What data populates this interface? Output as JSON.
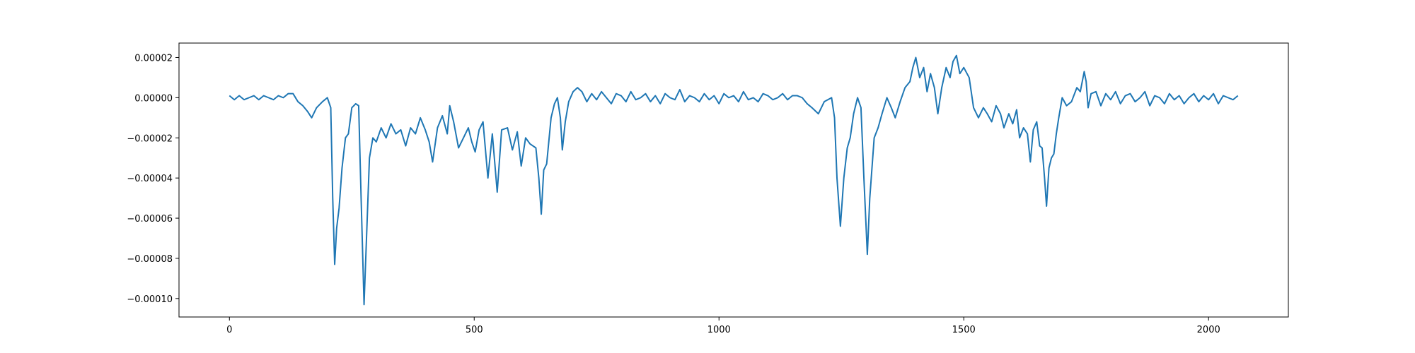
{
  "chart_data": {
    "type": "line",
    "x": [
      0,
      10,
      20,
      30,
      40,
      50,
      60,
      70,
      80,
      90,
      100,
      110,
      120,
      130,
      140,
      150,
      160,
      168,
      178,
      190,
      200,
      207,
      211,
      215,
      219,
      224,
      230,
      237,
      243,
      250,
      258,
      264,
      269,
      275,
      280,
      286,
      293,
      300,
      310,
      320,
      330,
      340,
      350,
      360,
      370,
      380,
      390,
      400,
      408,
      415,
      425,
      435,
      445,
      450,
      458,
      468,
      478,
      488,
      495,
      502,
      510,
      518,
      528,
      537,
      547,
      556,
      568,
      578,
      588,
      596,
      605,
      614,
      626,
      632,
      637,
      642,
      648,
      657,
      664,
      670,
      676,
      680,
      686,
      693,
      702,
      711,
      720,
      730,
      740,
      750,
      760,
      770,
      780,
      790,
      800,
      810,
      820,
      830,
      840,
      850,
      860,
      870,
      880,
      890,
      900,
      910,
      920,
      930,
      940,
      950,
      960,
      970,
      980,
      990,
      1000,
      1010,
      1020,
      1030,
      1040,
      1050,
      1060,
      1070,
      1080,
      1090,
      1100,
      1110,
      1120,
      1130,
      1140,
      1150,
      1160,
      1170,
      1180,
      1190,
      1203,
      1215,
      1230,
      1236,
      1241,
      1248,
      1255,
      1262,
      1268,
      1275,
      1283,
      1290,
      1296,
      1303,
      1308,
      1317,
      1325,
      1333,
      1343,
      1352,
      1360,
      1370,
      1380,
      1390,
      1396,
      1402,
      1410,
      1418,
      1425,
      1432,
      1440,
      1447,
      1455,
      1464,
      1472,
      1478,
      1485,
      1492,
      1500,
      1511,
      1520,
      1530,
      1540,
      1548,
      1557,
      1566,
      1575,
      1582,
      1592,
      1600,
      1608,
      1614,
      1622,
      1630,
      1636,
      1642,
      1649,
      1655,
      1660,
      1665,
      1669,
      1674,
      1679,
      1684,
      1689,
      1694,
      1701,
      1710,
      1720,
      1731,
      1738,
      1746,
      1750,
      1754,
      1760,
      1770,
      1780,
      1790,
      1800,
      1810,
      1820,
      1830,
      1840,
      1850,
      1860,
      1870,
      1880,
      1890,
      1900,
      1910,
      1920,
      1930,
      1940,
      1950,
      1960,
      1970,
      1980,
      1990,
      2000,
      2010,
      2020,
      2030,
      2040,
      2050,
      2060
    ],
    "values": [
      1e-06,
      -1e-06,
      1e-06,
      -1e-06,
      0,
      1e-06,
      -1e-06,
      1e-06,
      0,
      -1e-06,
      1e-06,
      0,
      2e-06,
      2e-06,
      -2e-06,
      -4e-06,
      -7e-06,
      -1e-05,
      -5e-06,
      -2e-06,
      0,
      -5e-06,
      -5e-05,
      -8.3e-05,
      -6.5e-05,
      -5.5e-05,
      -3.5e-05,
      -2e-05,
      -1.8e-05,
      -5e-06,
      -3e-06,
      -4e-06,
      -5e-05,
      -0.000103,
      -7e-05,
      -3e-05,
      -2e-05,
      -2.2e-05,
      -1.5e-05,
      -2e-05,
      -1.3e-05,
      -1.8e-05,
      -1.6e-05,
      -2.4e-05,
      -1.5e-05,
      -1.8e-05,
      -1e-05,
      -1.6e-05,
      -2.2e-05,
      -3.2e-05,
      -1.5e-05,
      -9e-06,
      -1.8e-05,
      -4e-06,
      -1.2e-05,
      -2.5e-05,
      -2e-05,
      -1.5e-05,
      -2.2e-05,
      -2.7e-05,
      -1.6e-05,
      -1.2e-05,
      -4e-05,
      -1.8e-05,
      -4.7e-05,
      -1.6e-05,
      -1.5e-05,
      -2.6e-05,
      -1.7e-05,
      -3.4e-05,
      -2e-05,
      -2.3e-05,
      -2.5e-05,
      -4e-05,
      -5.8e-05,
      -3.6e-05,
      -3.3e-05,
      -1e-05,
      -3e-06,
      0,
      -1e-05,
      -2.6e-05,
      -1.2e-05,
      -2e-06,
      3e-06,
      5e-06,
      3e-06,
      -2e-06,
      2e-06,
      -1e-06,
      3e-06,
      0,
      -3e-06,
      2e-06,
      1e-06,
      -2e-06,
      3e-06,
      -1e-06,
      0,
      2e-06,
      -2e-06,
      1e-06,
      -3e-06,
      2e-06,
      0,
      -1e-06,
      4e-06,
      -2e-06,
      1e-06,
      0,
      -2e-06,
      2e-06,
      -1e-06,
      1e-06,
      -3e-06,
      2e-06,
      0,
      1e-06,
      -2e-06,
      3e-06,
      -1e-06,
      0,
      -2e-06,
      2e-06,
      1e-06,
      -1e-06,
      0,
      2e-06,
      -1e-06,
      1e-06,
      1e-06,
      0,
      -3e-06,
      -5e-06,
      -8e-06,
      -2e-06,
      0,
      -1e-05,
      -4e-05,
      -6.4e-05,
      -4e-05,
      -2.5e-05,
      -2e-05,
      -8e-06,
      0,
      -5e-06,
      -4e-05,
      -7.8e-05,
      -5e-05,
      -2e-05,
      -1.5e-05,
      -8e-06,
      0,
      -5e-06,
      -1e-05,
      -2e-06,
      5e-06,
      8e-06,
      1.5e-05,
      2e-05,
      1e-05,
      1.5e-05,
      3e-06,
      1.2e-05,
      5e-06,
      -8e-06,
      5e-06,
      1.5e-05,
      1e-05,
      1.8e-05,
      2.1e-05,
      1.2e-05,
      1.5e-05,
      1e-05,
      -5e-06,
      -1e-05,
      -5e-06,
      -8e-06,
      -1.2e-05,
      -4e-06,
      -8e-06,
      -1.5e-05,
      -8e-06,
      -1.3e-05,
      -6e-06,
      -2e-05,
      -1.5e-05,
      -1.8e-05,
      -3.2e-05,
      -1.6e-05,
      -1.2e-05,
      -2.4e-05,
      -2.5e-05,
      -4e-05,
      -5.4e-05,
      -3.5e-05,
      -3e-05,
      -2.8e-05,
      -1.8e-05,
      -1e-05,
      0,
      -4e-06,
      -2e-06,
      5e-06,
      3e-06,
      1.3e-05,
      8e-06,
      -5e-06,
      2e-06,
      3e-06,
      -4e-06,
      2e-06,
      -1e-06,
      3e-06,
      -3e-06,
      1e-06,
      2e-06,
      -2e-06,
      0,
      3e-06,
      -4e-06,
      1e-06,
      0,
      -3e-06,
      2e-06,
      -1e-06,
      1e-06,
      -3e-06,
      0,
      2e-06,
      -2e-06,
      1e-06,
      -1e-06,
      2e-06,
      -3e-06,
      1e-06,
      0,
      -1e-06,
      1e-06
    ],
    "color": "#1f77b4",
    "xlim": [
      -103,
      2163
    ],
    "xticks": [
      0,
      500,
      1000,
      1500,
      2000
    ],
    "ylim": [
      -0.0001092,
      2.72e-05
    ],
    "yticks": [
      {
        "value": 2e-05,
        "label": "0.00002"
      },
      {
        "value": 0,
        "label": "0.00000"
      },
      {
        "value": -2e-05,
        "label": "−0.00002"
      },
      {
        "value": -4e-05,
        "label": "−0.00004"
      },
      {
        "value": -6e-05,
        "label": "−0.00006"
      },
      {
        "value": -8e-05,
        "label": "−0.00008"
      },
      {
        "value": -0.0001,
        "label": "−0.00010"
      }
    ]
  }
}
